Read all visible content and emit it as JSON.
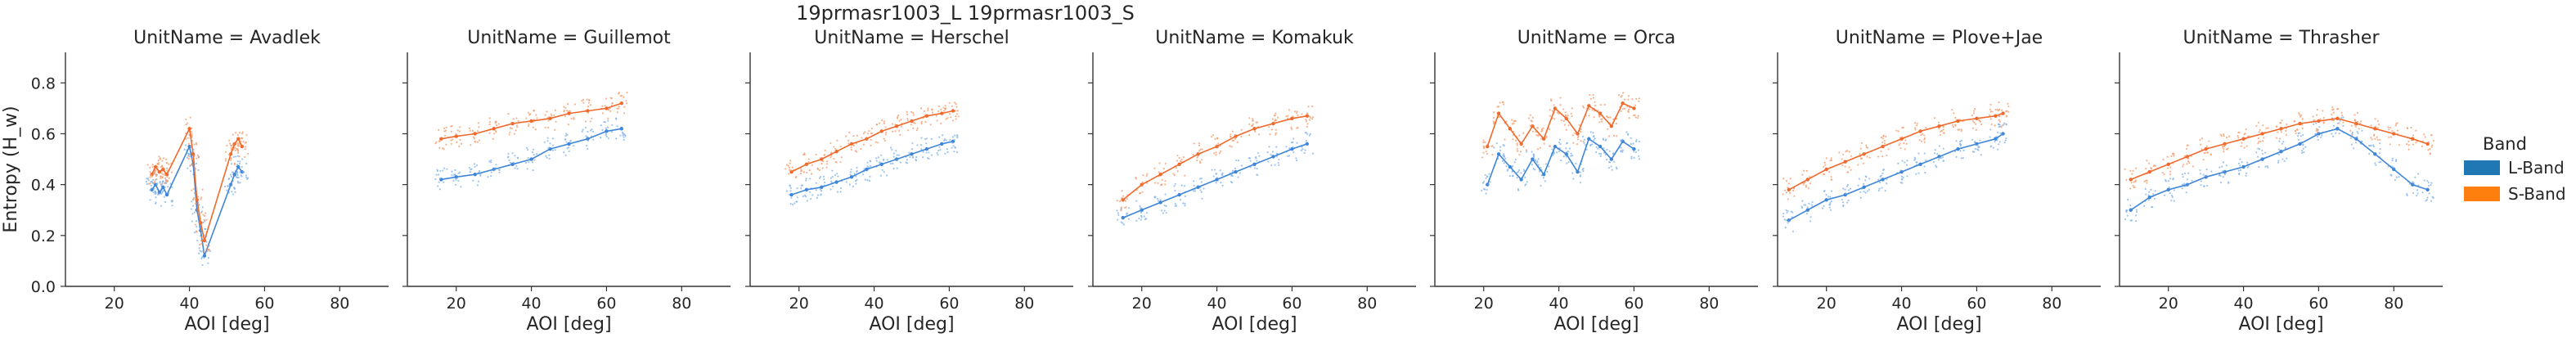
{
  "figure": {
    "title": "19prmasr1003_L 19prmasr1003_S"
  },
  "legend": {
    "title": "Band",
    "placement": "right",
    "items": [
      {
        "label": "L-Band",
        "color": "#1f77b4"
      },
      {
        "label": "S-Band",
        "color": "#ff7f0e"
      }
    ]
  },
  "colors": {
    "l_band_points": "#7fb2ea",
    "s_band_points": "#f49a68",
    "l_band_line": "#3f86d8",
    "s_band_line": "#ef6a2c",
    "axis": "#333333"
  },
  "chart_data": {
    "type": "scatter",
    "facet_variable": "UnitName",
    "xlabel": "AOI [deg]",
    "ylabel": "Entropy (H_w)",
    "xlim": [
      7,
      93
    ],
    "ylim": [
      0.0,
      0.92
    ],
    "xticks": [
      20,
      40,
      60,
      80
    ],
    "yticks": [
      0.0,
      0.2,
      0.4,
      0.6,
      0.8
    ],
    "grid": false,
    "legend_placement": "right",
    "panels": [
      {
        "title": "UnitName = Avadlek",
        "series": [
          {
            "name": "L-Band",
            "x": [
              30,
              31,
              32,
              33,
              34,
              40,
              41,
              42,
              43,
              44,
              51,
              52,
              53,
              54
            ],
            "y": [
              0.38,
              0.4,
              0.37,
              0.39,
              0.36,
              0.55,
              0.48,
              0.3,
              0.22,
              0.12,
              0.4,
              0.44,
              0.47,
              0.45
            ]
          },
          {
            "name": "S-Band",
            "x": [
              30,
              31,
              32,
              33,
              34,
              40,
              41,
              42,
              43,
              44,
              51,
              52,
              53,
              54
            ],
            "y": [
              0.44,
              0.47,
              0.45,
              0.46,
              0.44,
              0.62,
              0.52,
              0.34,
              0.25,
              0.18,
              0.52,
              0.56,
              0.58,
              0.55
            ]
          }
        ]
      },
      {
        "title": "UnitName = Guillemot",
        "series": [
          {
            "name": "L-Band",
            "x": [
              16,
              20,
              25,
              30,
              35,
              40,
              45,
              50,
              55,
              60,
              64
            ],
            "y": [
              0.42,
              0.43,
              0.44,
              0.46,
              0.48,
              0.5,
              0.54,
              0.56,
              0.58,
              0.61,
              0.62
            ]
          },
          {
            "name": "S-Band",
            "x": [
              16,
              20,
              25,
              30,
              35,
              40,
              45,
              50,
              55,
              60,
              64
            ],
            "y": [
              0.58,
              0.59,
              0.6,
              0.62,
              0.64,
              0.65,
              0.66,
              0.68,
              0.69,
              0.7,
              0.72
            ]
          }
        ]
      },
      {
        "title": "UnitName = Herschel",
        "series": [
          {
            "name": "L-Band",
            "x": [
              18,
              22,
              26,
              30,
              34,
              38,
              42,
              46,
              50,
              54,
              58,
              61
            ],
            "y": [
              0.36,
              0.38,
              0.39,
              0.41,
              0.43,
              0.46,
              0.48,
              0.5,
              0.52,
              0.54,
              0.56,
              0.57
            ]
          },
          {
            "name": "S-Band",
            "x": [
              18,
              22,
              26,
              30,
              34,
              38,
              42,
              46,
              50,
              54,
              58,
              61
            ],
            "y": [
              0.45,
              0.48,
              0.5,
              0.53,
              0.56,
              0.58,
              0.61,
              0.63,
              0.65,
              0.67,
              0.68,
              0.69
            ]
          }
        ]
      },
      {
        "title": "UnitName = Komakuk",
        "series": [
          {
            "name": "L-Band",
            "x": [
              15,
              20,
              25,
              30,
              35,
              40,
              45,
              50,
              55,
              60,
              64
            ],
            "y": [
              0.27,
              0.3,
              0.33,
              0.36,
              0.39,
              0.42,
              0.45,
              0.48,
              0.51,
              0.54,
              0.56
            ]
          },
          {
            "name": "S-Band",
            "x": [
              15,
              20,
              25,
              30,
              35,
              40,
              45,
              50,
              55,
              60,
              64
            ],
            "y": [
              0.34,
              0.4,
              0.44,
              0.48,
              0.52,
              0.55,
              0.59,
              0.62,
              0.64,
              0.66,
              0.67
            ]
          }
        ]
      },
      {
        "title": "UnitName = Orca",
        "series": [
          {
            "name": "L-Band",
            "x": [
              21,
              24,
              27,
              30,
              33,
              36,
              39,
              42,
              45,
              48,
              51,
              54,
              57,
              60
            ],
            "y": [
              0.4,
              0.52,
              0.47,
              0.42,
              0.5,
              0.44,
              0.55,
              0.52,
              0.45,
              0.58,
              0.55,
              0.5,
              0.57,
              0.54
            ]
          },
          {
            "name": "S-Band",
            "x": [
              21,
              24,
              27,
              30,
              33,
              36,
              39,
              42,
              45,
              48,
              51,
              54,
              57,
              60
            ],
            "y": [
              0.55,
              0.68,
              0.62,
              0.56,
              0.63,
              0.58,
              0.7,
              0.66,
              0.6,
              0.71,
              0.68,
              0.63,
              0.72,
              0.7
            ]
          }
        ]
      },
      {
        "title": "UnitName = Plove+Jae",
        "series": [
          {
            "name": "L-Band",
            "x": [
              10,
              15,
              20,
              25,
              30,
              35,
              40,
              45,
              50,
              55,
              60,
              65,
              67
            ],
            "y": [
              0.26,
              0.3,
              0.34,
              0.36,
              0.39,
              0.42,
              0.45,
              0.48,
              0.51,
              0.54,
              0.56,
              0.58,
              0.6
            ]
          },
          {
            "name": "S-Band",
            "x": [
              10,
              15,
              20,
              25,
              30,
              35,
              40,
              45,
              50,
              55,
              60,
              65,
              67
            ],
            "y": [
              0.38,
              0.42,
              0.46,
              0.49,
              0.52,
              0.55,
              0.58,
              0.61,
              0.63,
              0.65,
              0.66,
              0.67,
              0.68
            ]
          }
        ]
      },
      {
        "title": "UnitName = Thrasher",
        "series": [
          {
            "name": "L-Band",
            "x": [
              10,
              15,
              20,
              25,
              30,
              35,
              40,
              45,
              50,
              55,
              60,
              65,
              70,
              75,
              80,
              85,
              89
            ],
            "y": [
              0.3,
              0.35,
              0.38,
              0.4,
              0.43,
              0.45,
              0.47,
              0.5,
              0.53,
              0.56,
              0.6,
              0.62,
              0.58,
              0.52,
              0.46,
              0.4,
              0.38
            ]
          },
          {
            "name": "S-Band",
            "x": [
              10,
              15,
              20,
              25,
              30,
              35,
              40,
              45,
              50,
              55,
              60,
              65,
              70,
              75,
              80,
              85,
              89
            ],
            "y": [
              0.42,
              0.45,
              0.48,
              0.51,
              0.54,
              0.56,
              0.58,
              0.6,
              0.62,
              0.64,
              0.65,
              0.66,
              0.64,
              0.62,
              0.6,
              0.58,
              0.56
            ]
          }
        ]
      }
    ]
  }
}
